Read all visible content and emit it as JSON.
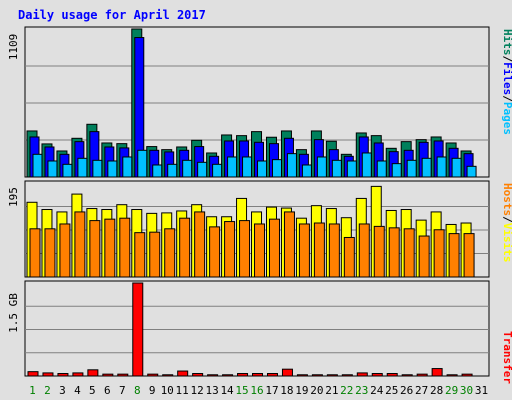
{
  "chart_data": {
    "type": "bar",
    "title": "Daily usage for April 2017",
    "categories": [
      "1",
      "2",
      "3",
      "4",
      "5",
      "6",
      "7",
      "8",
      "9",
      "10",
      "11",
      "12",
      "13",
      "14",
      "15",
      "16",
      "17",
      "18",
      "19",
      "20",
      "21",
      "22",
      "23",
      "24",
      "25",
      "26",
      "27",
      "28",
      "29",
      "30",
      "31"
    ],
    "weekend_days": [
      "1",
      "2",
      "8",
      "15",
      "16",
      "22",
      "23",
      "29",
      "30"
    ],
    "top_panel": {
      "ylabel_parts": [
        "Hits",
        "/",
        "Files",
        "/",
        "Pages"
      ],
      "max_label": "1109",
      "ylim": [
        0,
        1109
      ],
      "series": [
        {
          "name": "Hits",
          "color": "#00805c",
          "values": [
            345,
            248,
            195,
            290,
            395,
            255,
            250,
            1109,
            228,
            205,
            225,
            275,
            180,
            315,
            310,
            340,
            298,
            345,
            205,
            345,
            268,
            170,
            330,
            310,
            215,
            265,
            280,
            300,
            255,
            195,
            0
          ]
        },
        {
          "name": "Files",
          "color": "#0000ff",
          "values": [
            300,
            225,
            170,
            265,
            340,
            225,
            218,
            1045,
            200,
            188,
            200,
            228,
            155,
            270,
            270,
            260,
            250,
            290,
            170,
            280,
            205,
            155,
            300,
            255,
            190,
            200,
            260,
            270,
            215,
            175,
            0
          ]
        },
        {
          "name": "Pages",
          "color": "#00c0ff",
          "values": [
            170,
            120,
            95,
            140,
            125,
            120,
            150,
            200,
            90,
            95,
            125,
            110,
            95,
            150,
            150,
            120,
            130,
            175,
            90,
            150,
            125,
            120,
            180,
            120,
            100,
            125,
            140,
            150,
            140,
            80,
            0
          ]
        }
      ]
    },
    "middle_panel": {
      "ylabel_parts": [
        "Hosts",
        "/",
        "Visits"
      ],
      "max_label": "195",
      "ylim": [
        0,
        195
      ],
      "series": [
        {
          "name": "Visits",
          "color": "#ffff00",
          "values": [
            155,
            140,
            135,
            172,
            142,
            140,
            150,
            140,
            132,
            133,
            137,
            150,
            125,
            125,
            163,
            135,
            145,
            143,
            122,
            148,
            142,
            123,
            163,
            188,
            138,
            140,
            118,
            135,
            109,
            112,
            0
          ]
        },
        {
          "name": "Hosts",
          "color": "#ff8000",
          "values": [
            100,
            100,
            110,
            135,
            117,
            120,
            122,
            92,
            93,
            100,
            122,
            135,
            104,
            115,
            117,
            110,
            120,
            135,
            110,
            112,
            110,
            82,
            110,
            105,
            102,
            100,
            85,
            98,
            90,
            90,
            0
          ]
        }
      ]
    },
    "bottom_panel": {
      "ylabel_parts": [
        "Transfer"
      ],
      "max_label": "1.5 GB",
      "ylim": [
        0,
        1.5
      ],
      "series": [
        {
          "name": "Transfer",
          "color": "#ff0000",
          "values": [
            0.07,
            0.05,
            0.04,
            0.05,
            0.1,
            0.03,
            0.03,
            1.5,
            0.03,
            0.02,
            0.08,
            0.04,
            0.02,
            0.02,
            0.04,
            0.04,
            0.04,
            0.11,
            0.02,
            0.02,
            0.02,
            0.02,
            0.05,
            0.04,
            0.04,
            0.02,
            0.03,
            0.12,
            0.02,
            0.03,
            0
          ]
        }
      ]
    },
    "colors": {
      "title": "#0000ff",
      "weekend_label": "#008000",
      "weekday_label": "#000000",
      "hits": "#00805c",
      "files": "#0000ff",
      "pages": "#00c0ff",
      "hosts": "#ff8000",
      "visits": "#ffff00",
      "transfer": "#ff0000",
      "axis_text": "#000000"
    }
  }
}
